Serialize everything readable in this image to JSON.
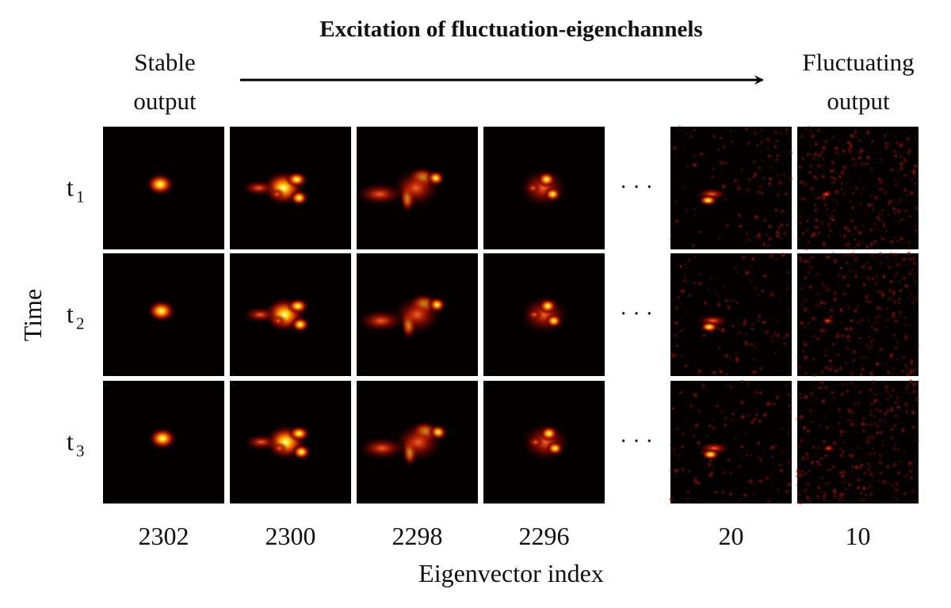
{
  "header": {
    "title": "Excitation of fluctuation-eigenchannels",
    "left_label": [
      "Stable",
      "output"
    ],
    "right_label": [
      "Fluctuating",
      "output"
    ]
  },
  "rows": [
    {
      "label": "t",
      "subscript": "1"
    },
    {
      "label": "t",
      "subscript": "2"
    },
    {
      "label": "t",
      "subscript": "3"
    }
  ],
  "row_axis_label": "Time",
  "columns": [
    2302,
    2300,
    2298,
    2296,
    20,
    10
  ],
  "ellipsis": "· · ·",
  "column_axis_label": "Eigenvector index"
}
